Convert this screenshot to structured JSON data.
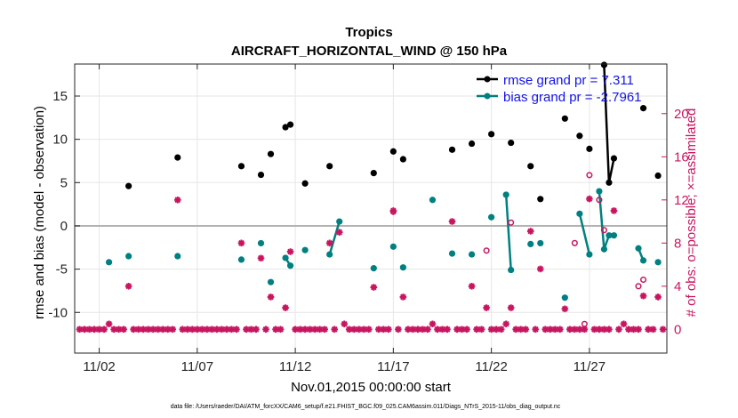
{
  "chart_data": {
    "type": "scatter",
    "title": "Tropics",
    "subtitle": "AIRCRAFT_HORIZONTAL_WIND @ 150 hPa",
    "xlabel": "Nov.01,2015 00:00:00 start",
    "ylabel": "rmse and bias (model - observation)",
    "ylabel_right": "# of obs: o=possible; ×=assimilated",
    "footnote": "data file: /Users/raeder/DAI/ATM_forcXX/CAM6_setup/f.e21.FHIST_BGC.f09_025.CAM6assim.011/Diags_NTrS_2015-11/obs_diag_output.nc",
    "xlim": [
      0.75,
      30.95
    ],
    "ylim": [
      -14.7,
      18.7
    ],
    "ylim_right": [
      -2.2,
      24.6
    ],
    "x_ticks": [
      2,
      7,
      12,
      17,
      22,
      27
    ],
    "x_tick_labels": [
      "11/02",
      "11/07",
      "11/12",
      "11/17",
      "11/22",
      "11/27"
    ],
    "y_ticks": [
      -10,
      -5,
      0,
      5,
      10,
      15
    ],
    "y_tick_labels": [
      "-10",
      "-5",
      "0",
      "5",
      "10",
      "15"
    ],
    "y_ticks_right": [
      0,
      4,
      8,
      12,
      16,
      20
    ],
    "y_tick_labels_right": [
      "0",
      "4",
      "8",
      "12",
      "16",
      "20"
    ],
    "reference_line": 0,
    "legend": [
      {
        "label": "rmse grand pr = 7.311",
        "color": "#000000"
      },
      {
        "label": "bias grand pr = -2.7961",
        "color": "#008080"
      }
    ],
    "legend_position": "top-right",
    "series": [
      {
        "name": "rmse",
        "color": "#000000",
        "points": [
          [
            3.5,
            4.6
          ],
          [
            6.0,
            7.9
          ],
          [
            9.25,
            6.9
          ],
          [
            10.25,
            5.9
          ],
          [
            10.75,
            8.3
          ],
          [
            11.5,
            11.4
          ],
          [
            11.75,
            11.7
          ],
          [
            12.5,
            4.9
          ],
          [
            13.75,
            6.9
          ],
          [
            16.0,
            6.1
          ],
          [
            17.0,
            8.6
          ],
          [
            17.5,
            7.7
          ],
          [
            20.0,
            8.8
          ],
          [
            21.0,
            9.5
          ],
          [
            22.0,
            10.6
          ],
          [
            23.0,
            9.6
          ],
          [
            24.0,
            6.9
          ],
          [
            24.5,
            3.1
          ],
          [
            25.75,
            12.4
          ],
          [
            26.5,
            10.4
          ],
          [
            27.0,
            8.9
          ],
          [
            27.75,
            18.6
          ],
          [
            28.0,
            5.0
          ],
          [
            28.25,
            7.8
          ],
          [
            29.75,
            13.6
          ],
          [
            30.5,
            5.8
          ]
        ],
        "lines": [
          [
            [
              11.5,
              11.4
            ],
            [
              11.75,
              11.7
            ]
          ],
          [
            [
              27.75,
              18.6
            ],
            [
              28.0,
              5.0
            ],
            [
              28.25,
              7.8
            ]
          ]
        ]
      },
      {
        "name": "bias",
        "color": "#008080",
        "points": [
          [
            2.5,
            -4.2
          ],
          [
            3.5,
            -3.5
          ],
          [
            6.0,
            -3.5
          ],
          [
            9.25,
            -3.9
          ],
          [
            10.25,
            -2.0
          ],
          [
            10.75,
            -6.5
          ],
          [
            11.5,
            -3.7
          ],
          [
            11.75,
            -4.6
          ],
          [
            12.5,
            -2.8
          ],
          [
            13.75,
            -3.3
          ],
          [
            14.25,
            0.5
          ],
          [
            16.0,
            -4.9
          ],
          [
            17.0,
            -2.4
          ],
          [
            17.5,
            -4.8
          ],
          [
            19.0,
            3.0
          ],
          [
            20.0,
            -3.2
          ],
          [
            21.0,
            -3.3
          ],
          [
            22.0,
            1.0
          ],
          [
            22.75,
            3.6
          ],
          [
            23.0,
            -5.1
          ],
          [
            24.0,
            -2.1
          ],
          [
            24.5,
            -2.0
          ],
          [
            25.75,
            -8.3
          ],
          [
            26.5,
            1.4
          ],
          [
            27.0,
            -3.3
          ],
          [
            27.5,
            4.0
          ],
          [
            27.75,
            -2.7
          ],
          [
            28.0,
            -1.1
          ],
          [
            28.25,
            -1.1
          ],
          [
            29.5,
            -2.6
          ],
          [
            29.75,
            -4.0
          ],
          [
            30.5,
            -4.2
          ]
        ],
        "lines": [
          [
            [
              11.5,
              -3.7
            ],
            [
              11.75,
              -4.6
            ]
          ],
          [
            [
              13.75,
              -3.3
            ],
            [
              14.25,
              0.5
            ]
          ],
          [
            [
              22.75,
              3.6
            ],
            [
              23.0,
              -5.1
            ]
          ],
          [
            [
              26.5,
              1.4
            ],
            [
              27.0,
              -3.3
            ]
          ],
          [
            [
              27.5,
              4.0
            ],
            [
              27.75,
              -2.7
            ],
            [
              28.0,
              -1.1
            ],
            [
              28.25,
              -1.1
            ]
          ],
          [
            [
              29.5,
              -2.6
            ],
            [
              29.75,
              -4.0
            ]
          ]
        ]
      },
      {
        "name": "obs possible",
        "axis": "right",
        "marker": "o",
        "color": "#c8155f",
        "points": [
          [
            17.0,
            10.9
          ],
          [
            21.75,
            7.3
          ],
          [
            23.0,
            9.9
          ],
          [
            26.25,
            8.0
          ],
          [
            26.75,
            0.5
          ],
          [
            27.0,
            14.3
          ],
          [
            27.5,
            12.0
          ],
          [
            27.75,
            9.2
          ],
          [
            29.5,
            4.0
          ],
          [
            29.75,
            4.6
          ]
        ]
      },
      {
        "name": "obs assimilated",
        "axis": "right",
        "marker": "*",
        "color": "#c8155f",
        "points": [
          [
            1.0,
            0
          ],
          [
            1.25,
            0
          ],
          [
            1.5,
            0
          ],
          [
            1.75,
            0
          ],
          [
            2.0,
            0
          ],
          [
            2.25,
            0
          ],
          [
            2.5,
            0.5
          ],
          [
            2.75,
            0
          ],
          [
            3.0,
            0
          ],
          [
            3.25,
            0
          ],
          [
            3.5,
            4.0
          ],
          [
            3.75,
            0
          ],
          [
            4.0,
            0
          ],
          [
            4.25,
            0
          ],
          [
            4.5,
            0
          ],
          [
            4.75,
            0
          ],
          [
            5.0,
            0
          ],
          [
            5.25,
            0
          ],
          [
            5.5,
            0
          ],
          [
            5.75,
            0
          ],
          [
            6.0,
            12.0
          ],
          [
            6.25,
            0
          ],
          [
            6.5,
            0
          ],
          [
            6.75,
            0
          ],
          [
            7.0,
            0
          ],
          [
            7.25,
            0
          ],
          [
            7.5,
            0
          ],
          [
            7.75,
            0
          ],
          [
            8.0,
            0
          ],
          [
            8.25,
            0
          ],
          [
            8.5,
            0
          ],
          [
            8.75,
            0
          ],
          [
            9.0,
            0
          ],
          [
            9.25,
            8.0
          ],
          [
            9.5,
            0
          ],
          [
            9.75,
            0
          ],
          [
            10.0,
            0
          ],
          [
            10.25,
            6.6
          ],
          [
            10.5,
            0
          ],
          [
            10.75,
            3.0
          ],
          [
            11.0,
            0
          ],
          [
            11.25,
            0
          ],
          [
            11.5,
            2.0
          ],
          [
            11.75,
            7.2
          ],
          [
            12.0,
            0
          ],
          [
            12.25,
            0
          ],
          [
            12.5,
            0
          ],
          [
            12.75,
            0
          ],
          [
            13.0,
            0
          ],
          [
            13.25,
            0
          ],
          [
            13.5,
            0
          ],
          [
            13.75,
            8.0
          ],
          [
            14.0,
            0
          ],
          [
            14.25,
            9.0
          ],
          [
            14.5,
            0.5
          ],
          [
            14.75,
            0
          ],
          [
            15.0,
            0
          ],
          [
            15.25,
            0
          ],
          [
            15.5,
            0
          ],
          [
            15.75,
            0
          ],
          [
            16.0,
            3.9
          ],
          [
            16.25,
            0
          ],
          [
            16.5,
            0
          ],
          [
            16.75,
            0
          ],
          [
            17.0,
            11.0
          ],
          [
            17.25,
            0
          ],
          [
            17.5,
            3.0
          ],
          [
            17.75,
            0
          ],
          [
            18.0,
            0
          ],
          [
            18.25,
            0
          ],
          [
            18.5,
            0
          ],
          [
            18.75,
            0
          ],
          [
            19.0,
            0.5
          ],
          [
            19.25,
            0
          ],
          [
            19.5,
            0
          ],
          [
            19.75,
            0
          ],
          [
            20.0,
            10.0
          ],
          [
            20.25,
            0
          ],
          [
            20.5,
            0
          ],
          [
            20.75,
            0
          ],
          [
            21.0,
            4.0
          ],
          [
            21.25,
            0
          ],
          [
            21.5,
            0
          ],
          [
            21.75,
            2.0
          ],
          [
            22.0,
            0
          ],
          [
            22.25,
            0
          ],
          [
            22.5,
            0
          ],
          [
            22.75,
            0.5
          ],
          [
            23.0,
            2.0
          ],
          [
            23.25,
            0
          ],
          [
            23.5,
            0
          ],
          [
            23.75,
            0
          ],
          [
            24.0,
            9.1
          ],
          [
            24.25,
            0
          ],
          [
            24.5,
            5.6
          ],
          [
            24.75,
            0
          ],
          [
            25.0,
            0
          ],
          [
            25.25,
            0
          ],
          [
            25.5,
            0
          ],
          [
            25.75,
            1.9
          ],
          [
            26.0,
            0
          ],
          [
            26.25,
            0
          ],
          [
            26.5,
            0
          ],
          [
            26.75,
            0
          ],
          [
            27.0,
            12.1
          ],
          [
            27.25,
            0
          ],
          [
            27.5,
            0
          ],
          [
            27.75,
            0
          ],
          [
            28.0,
            0
          ],
          [
            28.25,
            11.0
          ],
          [
            28.5,
            0
          ],
          [
            28.75,
            0.5
          ],
          [
            29.0,
            0
          ],
          [
            29.25,
            0
          ],
          [
            29.5,
            0
          ],
          [
            29.75,
            3.1
          ],
          [
            30.0,
            0
          ],
          [
            30.25,
            0
          ],
          [
            30.5,
            3.0
          ],
          [
            30.75,
            0
          ]
        ]
      }
    ]
  }
}
